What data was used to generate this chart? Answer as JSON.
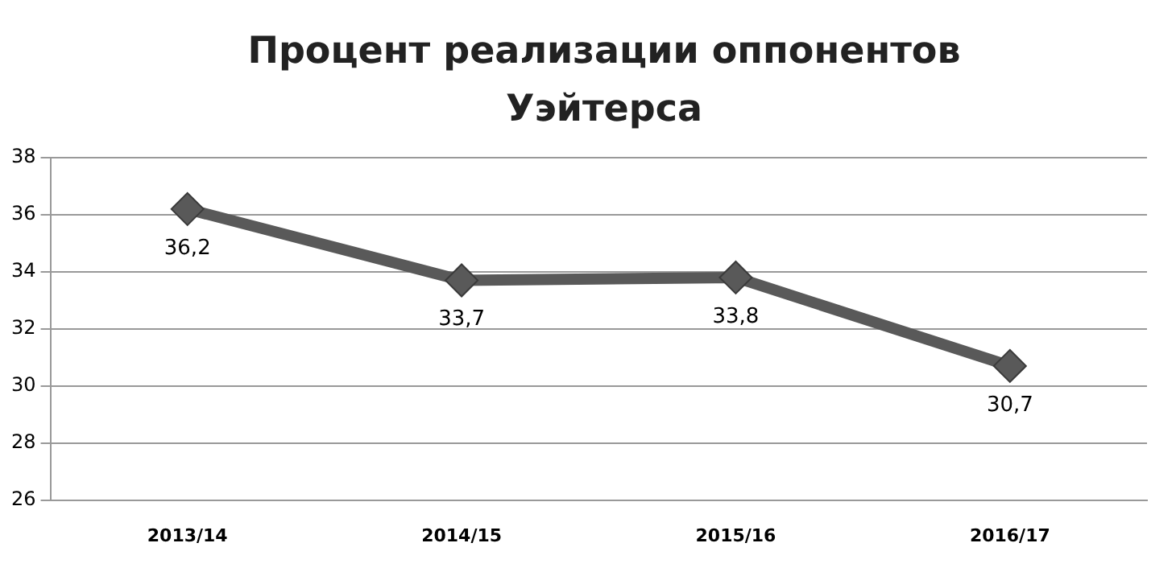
{
  "chart_data": {
    "type": "line",
    "title": "Процент реализации оппонентов Уэйтерса",
    "categories": [
      "2013/14",
      "2014/15",
      "2015/16",
      "2016/17"
    ],
    "series": [
      {
        "color": "#595959",
        "values": [
          36.2,
          33.7,
          33.8,
          30.7
        ],
        "value_labels": [
          "36,2",
          "33,7",
          "33,8",
          "30,7"
        ]
      }
    ],
    "ylim": [
      26,
      38
    ],
    "yticks": [
      26,
      28,
      30,
      32,
      34,
      36,
      38
    ],
    "grid": "y",
    "legend": false,
    "marker": "diamond",
    "line_style": "solid"
  }
}
